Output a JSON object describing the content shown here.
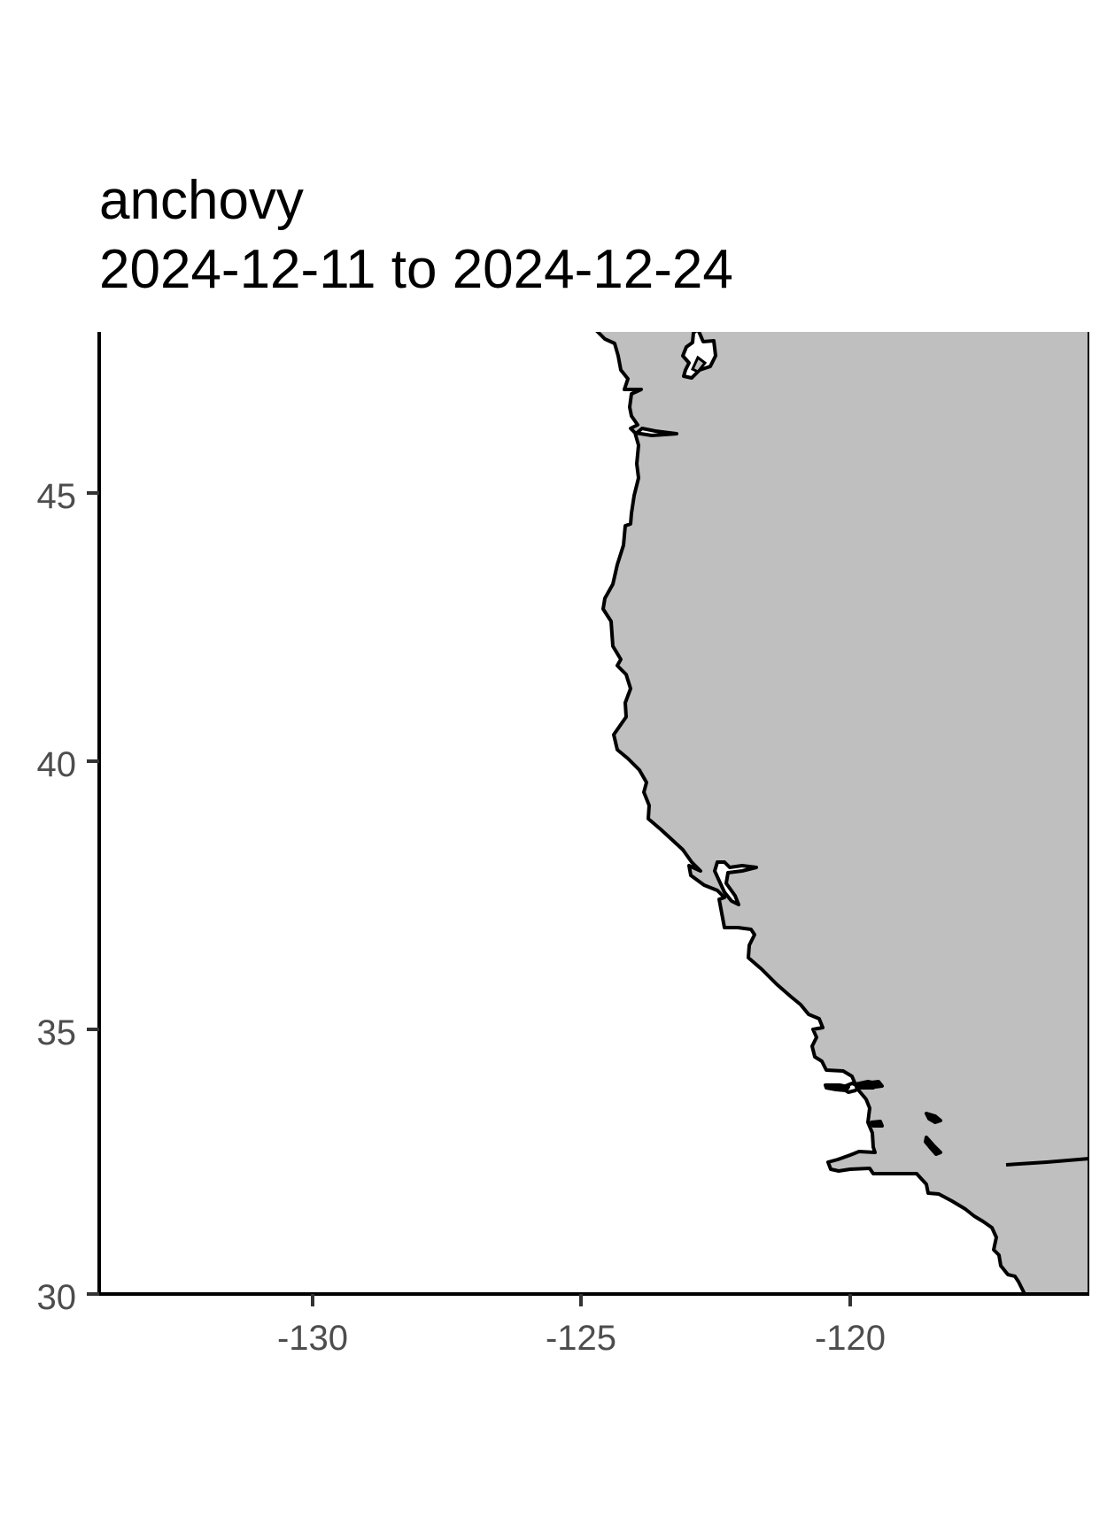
{
  "title": {
    "line1": "anchovy",
    "line2": "2024-12-11 to 2024-12-24"
  },
  "map": {
    "x_ticks": [
      "-130",
      "-125",
      "-120"
    ],
    "y_ticks": [
      "45",
      "40",
      "35",
      "30"
    ],
    "x_range": [
      -134,
      -115.6
    ],
    "y_range": [
      30,
      48
    ],
    "land_color": "#bfbfbf",
    "ocean_color": "#ffffff",
    "coastline_color": "#000000",
    "grid": false
  }
}
